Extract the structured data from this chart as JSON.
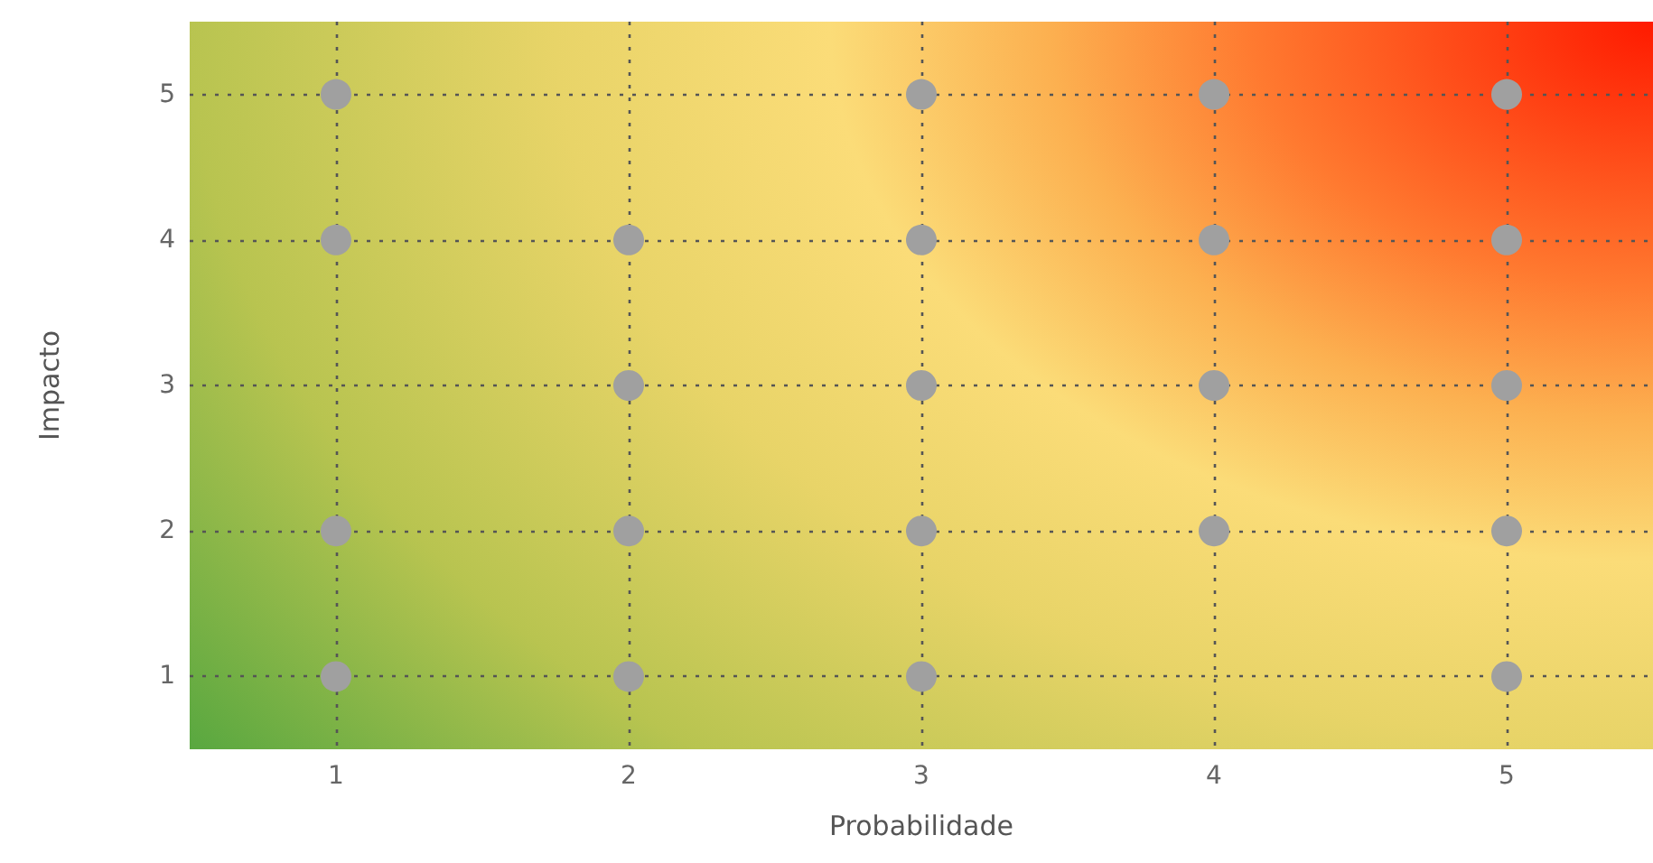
{
  "chart_data": {
    "type": "scatter",
    "xlabel": "Probabilidade",
    "ylabel": "Impacto",
    "xlim": [
      0.5,
      5.5
    ],
    "xticks": [
      1,
      2,
      3,
      4,
      5
    ],
    "ylim": [
      0.5,
      5.5
    ],
    "yticks": [
      1,
      2,
      3,
      4,
      5
    ],
    "grid": true,
    "marker": "circle",
    "series": [
      {
        "color": "#a0a0a0",
        "x": [
          1,
          3,
          4,
          5,
          1,
          2,
          3,
          4,
          5,
          2,
          3,
          4,
          5,
          1,
          2,
          3,
          4,
          5,
          1,
          2,
          3,
          5
        ],
        "values": [
          5,
          5,
          5,
          5,
          4,
          4,
          4,
          4,
          4,
          3,
          3,
          3,
          3,
          2,
          2,
          2,
          2,
          2,
          1,
          1,
          1,
          1
        ]
      }
    ]
  }
}
